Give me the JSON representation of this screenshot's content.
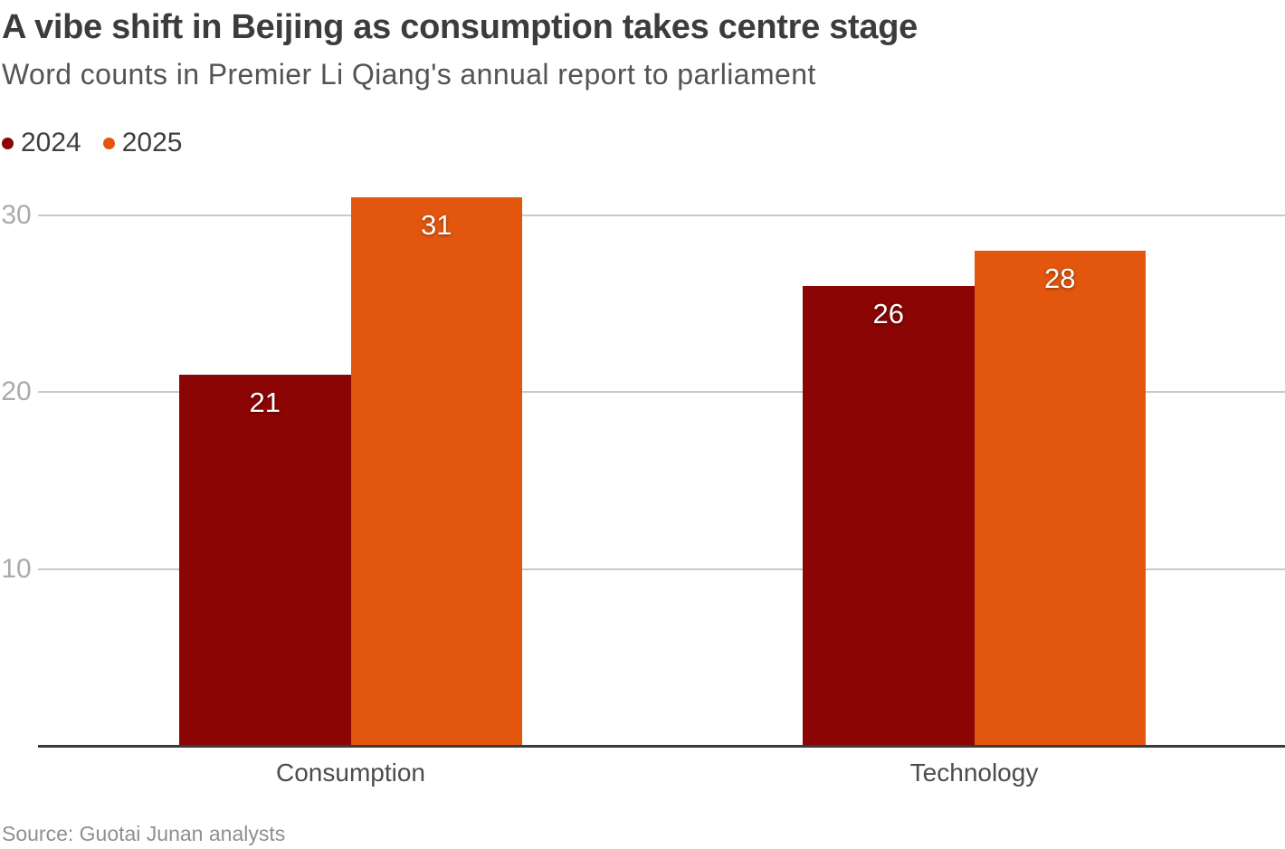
{
  "chart_data": {
    "type": "bar",
    "title": "A vibe shift in Beijing as consumption takes centre stage",
    "subtitle": "Word counts in Premier Li Qiang's annual report to parliament",
    "source": "Source: Guotai Junan analysts",
    "categories": [
      "Consumption",
      "Technology"
    ],
    "series": [
      {
        "name": "2024",
        "color": "#8A0503",
        "values": [
          21,
          26
        ]
      },
      {
        "name": "2025",
        "color": "#E2560D",
        "values": [
          31,
          28
        ]
      }
    ],
    "ylim": [
      0,
      31.5
    ],
    "yticks": [
      10,
      20,
      30
    ],
    "grid": "horizontal",
    "legend_position": "top-left",
    "value_labels": "inside-top",
    "text_color": "#3c3c3c",
    "gridline_color": "#c9c9c9",
    "axis_color": "#3a3a3a"
  }
}
